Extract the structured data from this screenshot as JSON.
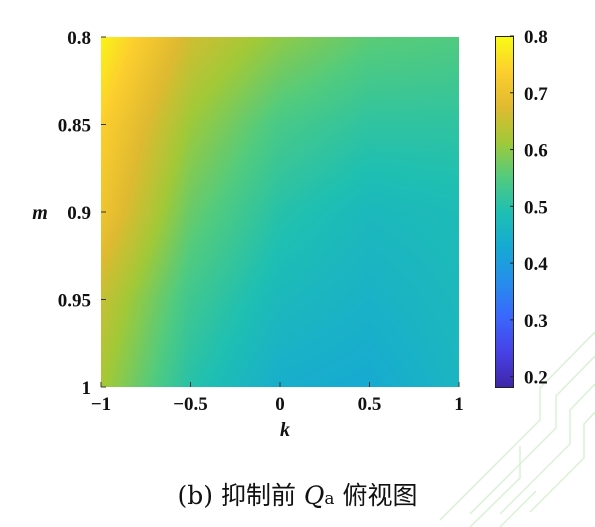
{
  "chart_data": {
    "type": "heatmap",
    "xlabel": "k",
    "ylabel": "m",
    "xlim": [
      -1,
      1
    ],
    "ylim": [
      0.8,
      1
    ],
    "y_axis_inverted": true,
    "x_ticks": [
      -1,
      -0.5,
      0,
      0.5,
      1
    ],
    "x_tick_labels": [
      "−1",
      "−0.5",
      "0",
      "0.5",
      "1"
    ],
    "y_ticks": [
      0.8,
      0.85,
      0.9,
      0.95,
      1
    ],
    "y_tick_labels": [
      "0.8",
      "0.85",
      "0.9",
      "0.95",
      "1"
    ],
    "colorbar": {
      "range": [
        0.18,
        0.8
      ],
      "ticks": [
        0.2,
        0.3,
        0.4,
        0.5,
        0.6,
        0.7,
        0.8
      ],
      "tick_labels": [
        "0.2",
        "0.3",
        "0.4",
        "0.5",
        "0.6",
        "0.7",
        "0.8"
      ],
      "colormap": "parula"
    },
    "grid_values": {
      "x": [
        -1,
        -0.5,
        0,
        0.5,
        1
      ],
      "y": [
        0.8,
        0.85,
        0.9,
        0.95,
        1
      ],
      "z": [
        [
          0.79,
          0.66,
          0.6,
          0.56,
          0.55
        ],
        [
          0.74,
          0.61,
          0.54,
          0.51,
          0.51
        ],
        [
          0.71,
          0.57,
          0.5,
          0.47,
          0.48
        ],
        [
          0.65,
          0.53,
          0.47,
          0.45,
          0.47
        ],
        [
          0.62,
          0.5,
          0.44,
          0.43,
          0.46
        ]
      ]
    }
  },
  "caption": {
    "prefix": "(b) 抑制前 ",
    "symbol": "Q",
    "subscript": "a",
    "suffix": " 俯视图"
  }
}
